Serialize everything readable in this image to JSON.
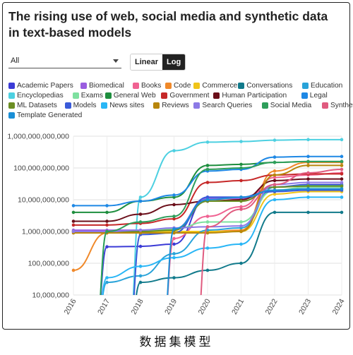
{
  "controls": {
    "filter_value": "All",
    "scale_options": [
      "Linear",
      "Log"
    ],
    "scale_active": "Log"
  },
  "caption": "数据集模型",
  "chart_data": {
    "type": "line",
    "title": "The rising use of web, social media and synthetic data in text-based models",
    "x": [
      2016,
      2017,
      2018,
      2019,
      2020,
      2021,
      2022,
      2023,
      2024
    ],
    "x_tick_labels": [
      "2016",
      "2017",
      "2018",
      "2019",
      "2020",
      "2021",
      "2022",
      "2023",
      "2024"
    ],
    "y_scale": "log",
    "ylim": [
      10000000,
      1000000000000
    ],
    "y_ticks": [
      10000000,
      100000000,
      1000000000,
      10000000000,
      100000000000,
      1000000000000
    ],
    "y_tick_labels": [
      "10,000,000",
      "100,000,000",
      "1,000,000,000",
      "10,000,000,000",
      "100,000,000,000",
      "1,000,000,000,000"
    ],
    "grid": true,
    "legend_position": "top",
    "series": [
      {
        "name": "Academic Papers",
        "color": "#3b3bd6",
        "values": [
          null,
          330000000,
          340000000,
          400000000,
          12000000000,
          12000000000,
          25000000000,
          30000000000,
          30000000000
        ]
      },
      {
        "name": "Biomedical",
        "color": "#9a5de0",
        "values": [
          1100000000,
          1100000000,
          1100000000,
          1200000000,
          11000000000,
          11000000000,
          20000000000,
          22000000000,
          22000000000
        ]
      },
      {
        "name": "Books",
        "color": "#f06292",
        "values": [
          null,
          null,
          null,
          600000000,
          3000000000,
          6000000000,
          50000000000,
          60000000000,
          70000000000
        ]
      },
      {
        "name": "Code",
        "color": "#f0892a",
        "values": [
          60000000,
          900000000,
          1000000000,
          1000000000,
          1000000000,
          1100000000,
          80000000000,
          150000000000,
          150000000000
        ]
      },
      {
        "name": "Commerce",
        "color": "#f0c419",
        "values": [
          1000000000,
          1000000000,
          1000000000,
          1000000000,
          1000000000,
          1000000000,
          15000000000,
          18000000000,
          18000000000
        ]
      },
      {
        "name": "Conversations",
        "color": "#117a8b",
        "values": [
          null,
          null,
          25000000,
          35000000,
          60000000,
          100000000,
          4000000000,
          4000000000,
          4000000000
        ]
      },
      {
        "name": "Education",
        "color": "#29a3d9",
        "values": [
          null,
          25000000,
          40000000,
          200000000,
          1100000000,
          1300000000,
          25000000000,
          28000000000,
          28000000000
        ]
      },
      {
        "name": "Encyclopedias",
        "color": "#4dd0e1",
        "values": [
          null,
          null,
          12000000000,
          350000000000,
          650000000000,
          680000000000,
          750000000000,
          780000000000,
          780000000000
        ]
      },
      {
        "name": "Exams",
        "color": "#7ee0a0",
        "values": [
          null,
          1000000000,
          1000000000,
          1200000000,
          2000000000,
          2000000000,
          20000000000,
          25000000000,
          25000000000
        ]
      },
      {
        "name": "General Web",
        "color": "#1e8e3e",
        "values": [
          4000000000,
          4000000000,
          9000000000,
          12000000000,
          120000000000,
          130000000000,
          150000000000,
          160000000000,
          160000000000
        ]
      },
      {
        "name": "Government",
        "color": "#c62828",
        "values": [
          1600000000,
          1600000000,
          1800000000,
          2500000000,
          35000000000,
          40000000000,
          60000000000,
          65000000000,
          65000000000
        ]
      },
      {
        "name": "Human Participation",
        "color": "#6b0f1a",
        "values": [
          2100000000,
          2100000000,
          3500000000,
          7000000000,
          9000000000,
          10000000000,
          40000000000,
          45000000000,
          45000000000
        ]
      },
      {
        "name": "Legal",
        "color": "#1e88e5",
        "values": [
          6500000000,
          6500000000,
          9000000000,
          14000000000,
          80000000000,
          90000000000,
          220000000000,
          230000000000,
          230000000000
        ]
      },
      {
        "name": "ML Datasets",
        "color": "#6b8e23",
        "values": [
          1000000000,
          1000000000,
          1000000000,
          1100000000,
          9000000000,
          9000000000,
          25000000000,
          27000000000,
          27000000000
        ]
      },
      {
        "name": "Models",
        "color": "#3a5bd9",
        "values": [
          null,
          null,
          800000000,
          900000000,
          12000000000,
          12000000000,
          18000000000,
          20000000000,
          20000000000
        ]
      },
      {
        "name": "News sites",
        "color": "#29b6f6",
        "values": [
          null,
          35000000,
          80000000,
          150000000,
          300000000,
          400000000,
          10000000000,
          12000000000,
          12000000000
        ]
      },
      {
        "name": "Reviews",
        "color": "#b8860b",
        "values": [
          900000000,
          900000000,
          900000000,
          900000000,
          900000000,
          1000000000,
          60000000000,
          120000000000,
          120000000000
        ]
      },
      {
        "name": "Search Queries",
        "color": "#8c7ae6",
        "values": [
          1000000000,
          1000000000,
          1100000000,
          1300000000,
          1400000000,
          1500000000,
          30000000000,
          35000000000,
          35000000000
        ]
      },
      {
        "name": "Social Media",
        "color": "#2e9e5b",
        "values": [
          null,
          1000000000,
          2000000000,
          3000000000,
          90000000000,
          100000000000,
          150000000000,
          160000000000,
          160000000000
        ]
      },
      {
        "name": "Synthetic",
        "color": "#e05b7f",
        "values": [
          null,
          null,
          null,
          null,
          1400000000,
          5000000000,
          30000000000,
          70000000000,
          90000000000
        ]
      },
      {
        "name": "Template Generated",
        "color": "#1a8fd6",
        "values": [
          null,
          null,
          null,
          1200000000,
          10000000000,
          12000000000,
          20000000000,
          22000000000,
          22000000000
        ]
      }
    ]
  }
}
